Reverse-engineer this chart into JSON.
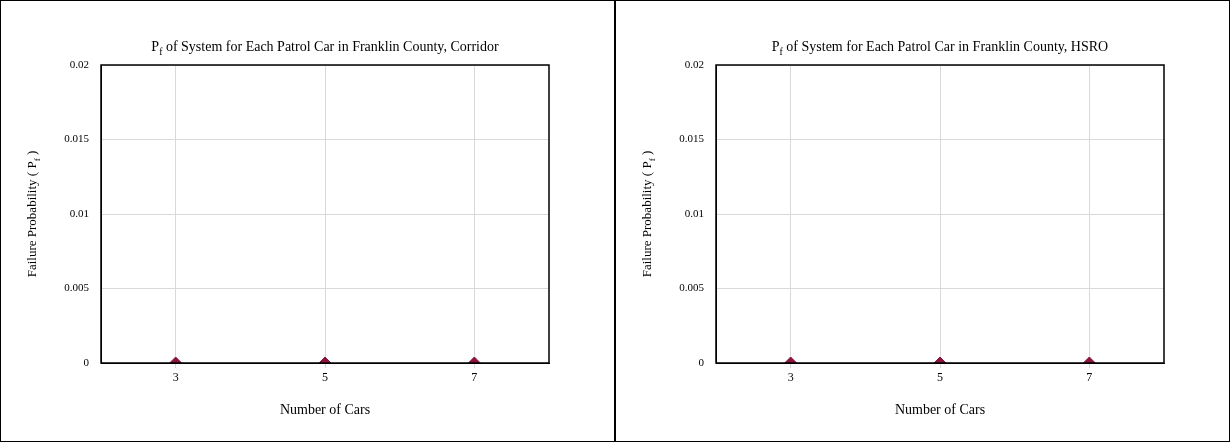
{
  "chart_data": [
    {
      "type": "scatter",
      "title": "P$_{f}$ of System for Each Patrol Car in Franklin County, Corridor",
      "xlabel": "Number of Cars",
      "ylabel": "Failure Probability ( P$_{f}$ )",
      "x": [
        3,
        5,
        7
      ],
      "series": [
        {
          "color": "#8b1538",
          "values": [
            0,
            0,
            0
          ]
        }
      ],
      "xlim": [
        2,
        8
      ],
      "xticks": [
        3,
        5,
        7
      ],
      "ylim": [
        0,
        0.02
      ],
      "yticks": [
        0,
        0.005,
        0.01,
        0.015,
        0.02
      ],
      "grid": true,
      "marker": "diamond"
    },
    {
      "type": "scatter",
      "title": "P$_{f}$ of System for Each Patrol Car in Franklin County, HSRO",
      "xlabel": "Number of Cars",
      "ylabel": "Failure Probability ( P$_{f}$ )",
      "x": [
        3,
        5,
        7
      ],
      "series": [
        {
          "color": "#8b1538",
          "values": [
            0,
            0,
            0
          ]
        }
      ],
      "xlim": [
        2,
        8
      ],
      "xticks": [
        3,
        5,
        7
      ],
      "ylim": [
        0,
        0.02
      ],
      "yticks": [
        0,
        0.005,
        0.01,
        0.015,
        0.02
      ],
      "grid": true,
      "marker": "diamond"
    }
  ]
}
